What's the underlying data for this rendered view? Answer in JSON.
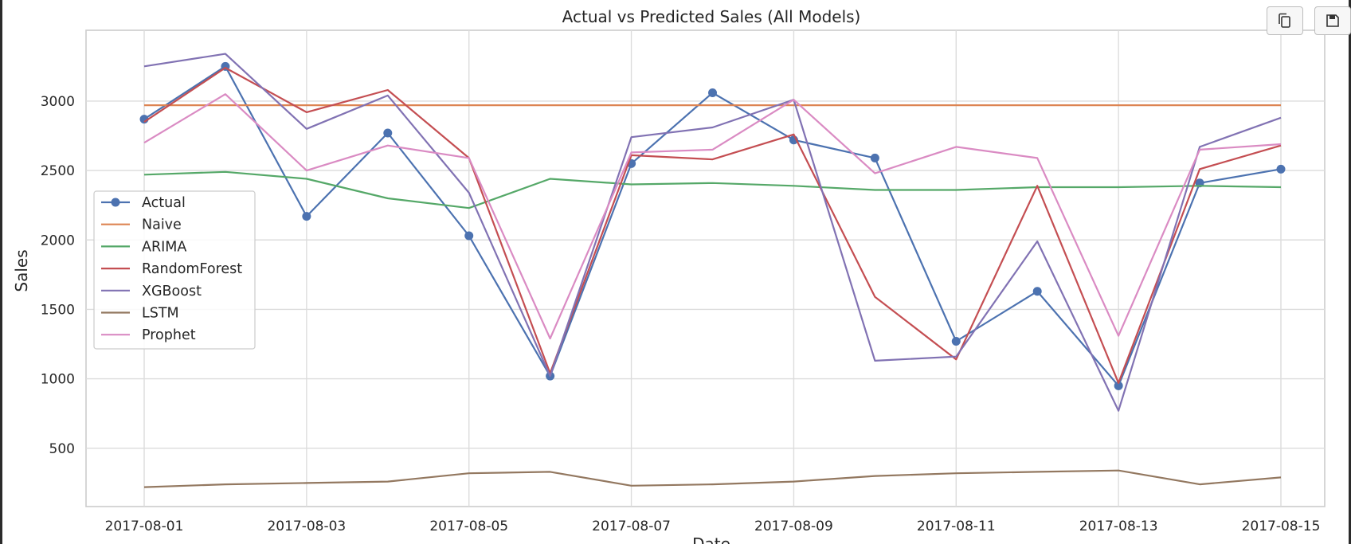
{
  "toolbar": {
    "copy_icon": "copy-icon",
    "save_icon": "save-icon"
  },
  "chart_data": {
    "type": "line",
    "title": "Actual vs Predicted Sales (All Models)",
    "xlabel": "Date",
    "ylabel": "Sales",
    "x": [
      "2017-08-01",
      "2017-08-02",
      "2017-08-03",
      "2017-08-04",
      "2017-08-05",
      "2017-08-06",
      "2017-08-07",
      "2017-08-08",
      "2017-08-09",
      "2017-08-10",
      "2017-08-11",
      "2017-08-12",
      "2017-08-13",
      "2017-08-14",
      "2017-08-15"
    ],
    "x_ticks": [
      "2017-08-01",
      "2017-08-03",
      "2017-08-05",
      "2017-08-07",
      "2017-08-09",
      "2017-08-11",
      "2017-08-13",
      "2017-08-15"
    ],
    "y_ticks": [
      500,
      1000,
      1500,
      2000,
      2500,
      3000
    ],
    "ylim": [
      80,
      3510
    ],
    "grid": true,
    "legend_position": "center-left",
    "series": [
      {
        "name": "Actual",
        "color": "#4c72b0",
        "marker": true,
        "values": [
          2870,
          3250,
          2170,
          2770,
          2030,
          1020,
          2550,
          3060,
          2720,
          2590,
          1270,
          1630,
          950,
          2410,
          2510
        ]
      },
      {
        "name": "Naive",
        "color": "#dd8452",
        "marker": false,
        "values": [
          2970,
          2970,
          2970,
          2970,
          2970,
          2970,
          2970,
          2970,
          2970,
          2970,
          2970,
          2970,
          2970,
          2970,
          2970
        ]
      },
      {
        "name": "ARIMA",
        "color": "#55a868",
        "marker": false,
        "values": [
          2470,
          2490,
          2440,
          2300,
          2230,
          2440,
          2400,
          2410,
          2390,
          2360,
          2360,
          2380,
          2380,
          2390,
          2380
        ]
      },
      {
        "name": "RandomForest",
        "color": "#c44e52",
        "marker": false,
        "values": [
          2850,
          3240,
          2920,
          3080,
          2590,
          1040,
          2610,
          2580,
          2760,
          1590,
          1140,
          2390,
          970,
          2510,
          2680
        ]
      },
      {
        "name": "XGBoost",
        "color": "#8172b3",
        "marker": false,
        "values": [
          3250,
          3340,
          2800,
          3040,
          2340,
          1020,
          2740,
          2810,
          3010,
          1130,
          1160,
          1990,
          770,
          2670,
          2880
        ]
      },
      {
        "name": "LSTM",
        "color": "#937860",
        "marker": false,
        "values": [
          220,
          240,
          250,
          260,
          320,
          330,
          230,
          240,
          260,
          300,
          320,
          330,
          340,
          240,
          290
        ]
      },
      {
        "name": "Prophet",
        "color": "#da8bc3",
        "marker": false,
        "values": [
          2700,
          3050,
          2500,
          2680,
          2590,
          1290,
          2630,
          2650,
          3010,
          2480,
          2670,
          2590,
          1310,
          2650,
          2690
        ]
      }
    ]
  }
}
